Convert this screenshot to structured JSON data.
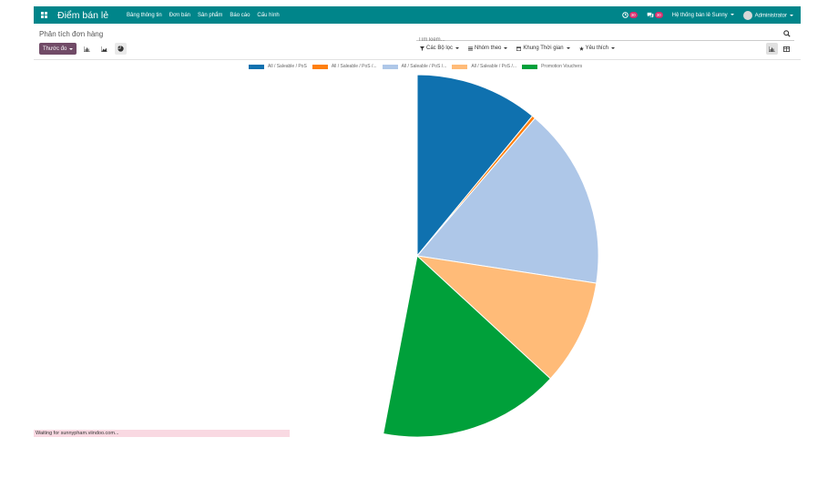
{
  "navbar": {
    "app_title": "Điểm bán lẻ",
    "menu": [
      "Bảng thông tin",
      "Đơn bán",
      "Sản phẩm",
      "Báo cáo",
      "Cấu hình"
    ],
    "activity_badge": "30",
    "messages_badge": "30",
    "company": "Hệ thống bán lẻ Sunny",
    "user": "Administrator"
  },
  "control_panel": {
    "breadcrumb": "Phân tích đơn hàng",
    "search_placeholder": "Tìm kiếm...",
    "measures_label": "Thước đo",
    "filters_label": "Các Bộ lọc",
    "groupby_label": "Nhóm theo",
    "timeframe_label": "Khung Thời gian",
    "favorites_label": "Yêu thích"
  },
  "chart_data": {
    "type": "pie",
    "legend_position": "top",
    "series": [
      {
        "name": "All / Saleable / PoS",
        "value": 36,
        "color": "#0f71af"
      },
      {
        "name": "All / Saleable / PoS /...",
        "value": 1,
        "color": "#ff7f0e"
      },
      {
        "name": "All / Saleable / PoS /...",
        "value": 53,
        "color": "#aec7e8"
      },
      {
        "name": "All / Saleable / PoS /...",
        "value": 31,
        "color": "#ffbb78"
      },
      {
        "name": "Promotion Vouchers",
        "value": 53,
        "color": "#00a03a"
      }
    ],
    "visible_fraction": 0.53
  },
  "status": "Waiting for sunnypham.viindoo.com..."
}
